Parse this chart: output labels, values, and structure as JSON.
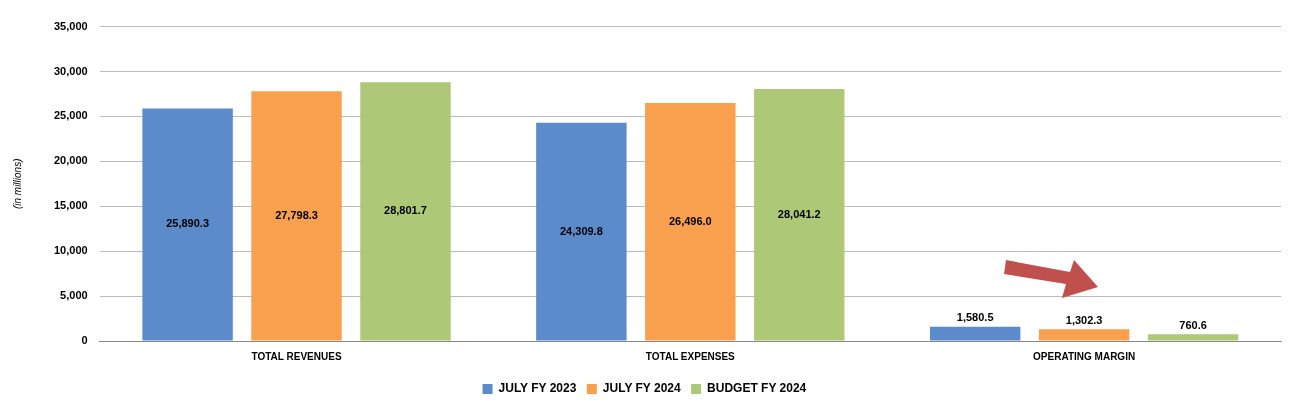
{
  "chart_data": {
    "type": "bar",
    "ylabel": "(in millions)",
    "categories": [
      "TOTAL REVENUES",
      "TOTAL EXPENSES",
      "OPERATING MARGIN"
    ],
    "series": [
      {
        "name": "JULY FY 2023",
        "color": "#5b8bcb",
        "values": [
          25890.3,
          24309.8,
          1580.5
        ],
        "value_labels": [
          "25,890.3",
          "24,309.8",
          "1,580.5"
        ]
      },
      {
        "name": "JULY FY 2024",
        "color": "#f9a04f",
        "values": [
          27798.3,
          26496.0,
          1302.3
        ],
        "value_labels": [
          "27,798.3",
          "26,496.0",
          "1,302.3"
        ]
      },
      {
        "name": "BUDGET FY 2024",
        "color": "#adc978",
        "values": [
          28801.7,
          28041.2,
          760.6
        ],
        "value_labels": [
          "28,801.7",
          "28,041.2",
          "760.6"
        ]
      }
    ],
    "ylim": [
      0,
      35000
    ],
    "yticks": [
      {
        "value": 0,
        "label": "0"
      },
      {
        "value": 5000,
        "label": "5,000"
      },
      {
        "value": 10000,
        "label": "10,000"
      },
      {
        "value": 15000,
        "label": "15,000"
      },
      {
        "value": 20000,
        "label": "20,000"
      },
      {
        "value": 25000,
        "label": "25,000"
      },
      {
        "value": 30000,
        "label": "30,000"
      },
      {
        "value": 35000,
        "label": "35,000"
      }
    ],
    "grid": "y",
    "legend": "bottom"
  }
}
